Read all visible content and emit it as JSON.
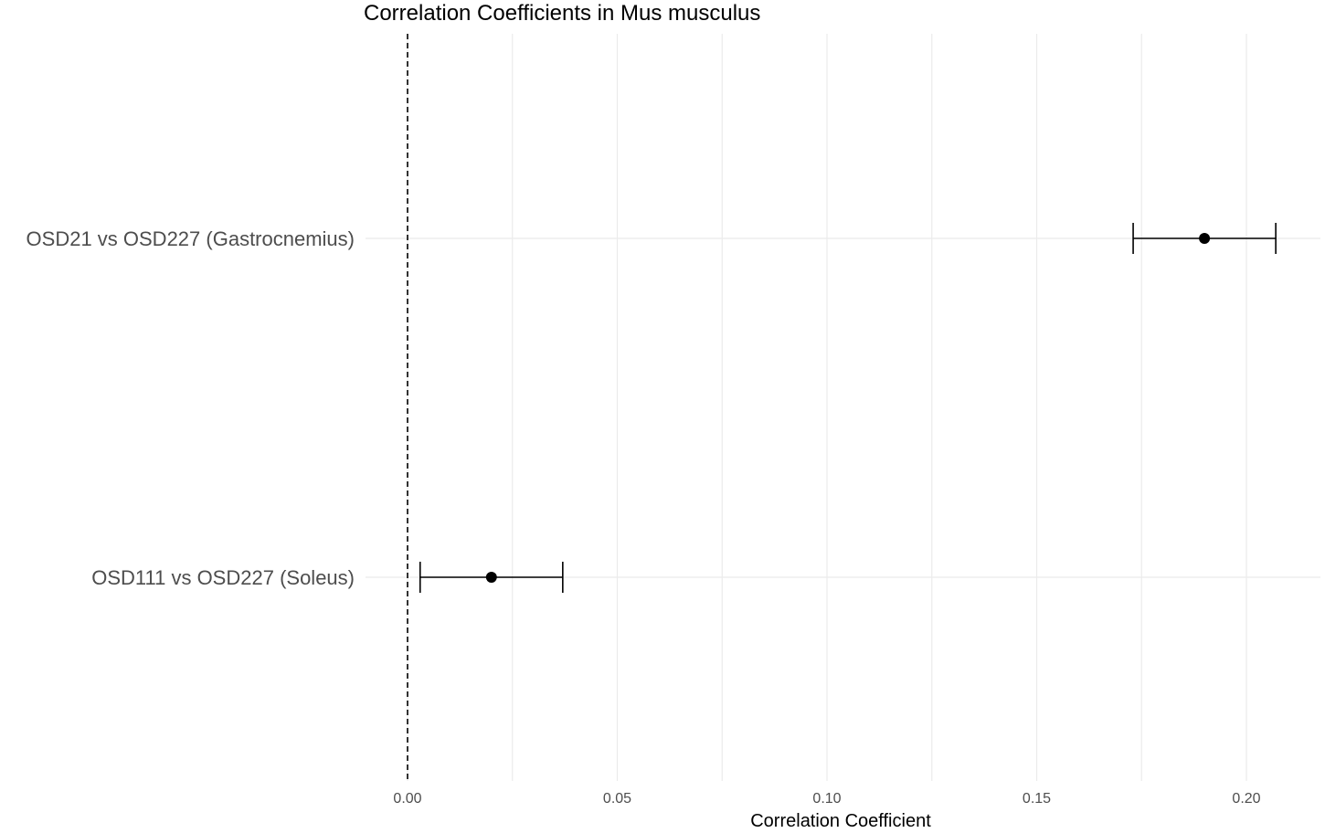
{
  "chart_data": {
    "type": "scatter",
    "title": "Correlation Coefficients in Mus musculus",
    "xlabel": "Correlation Coefficient",
    "ylabel": "",
    "xlim": [
      0.0,
      0.218
    ],
    "xticks": [
      0.0,
      0.05,
      0.1,
      0.15,
      0.2
    ],
    "xtick_labels": [
      "0.00",
      "0.05",
      "0.10",
      "0.15",
      "0.20"
    ],
    "reference_line": {
      "x": 0.0,
      "style": "dashed"
    },
    "grid": true,
    "points": [
      {
        "label": "OSD21 vs OSD227 (Gastrocnemius)",
        "estimate": 0.19,
        "ci_low": 0.173,
        "ci_high": 0.207
      },
      {
        "label": "OSD111 vs OSD227 (Soleus)",
        "estimate": 0.02,
        "ci_low": 0.003,
        "ci_high": 0.037
      }
    ]
  },
  "colors": {
    "grid": "#ebebeb",
    "point": "#000000",
    "errorbar": "#000000",
    "refline": "#000000",
    "tick_text": "#4d4d4d"
  }
}
